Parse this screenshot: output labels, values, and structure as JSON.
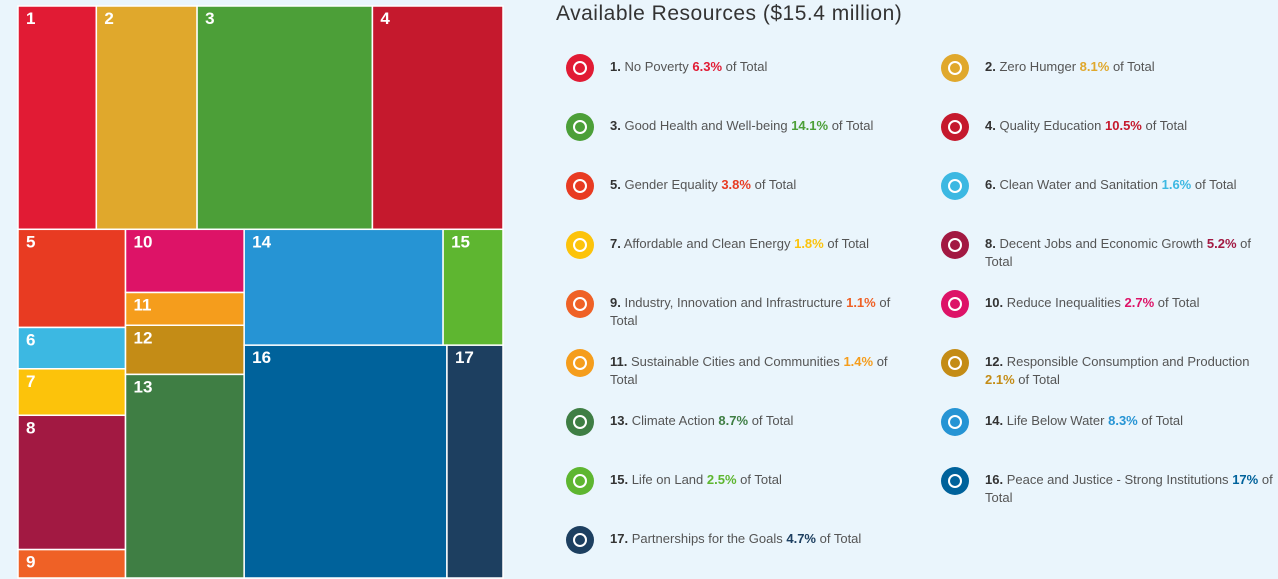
{
  "chart_data": {
    "type": "treemap",
    "title": "Available Resources ($15.4 million)",
    "tile_labels": [
      "1",
      "2",
      "3",
      "4",
      "5",
      "6",
      "7",
      "8",
      "9",
      "10",
      "11",
      "12",
      "13",
      "14",
      "15",
      "16",
      "17"
    ],
    "legend_numbers": [
      "1.",
      "2.",
      "3.",
      "4.",
      "5.",
      "6.",
      "7.",
      "8.",
      "9.",
      "10.",
      "11.",
      "12.",
      "13.",
      "14.",
      "15.",
      "16.",
      "17."
    ],
    "categories": [
      "No Poverty",
      "Zero Humger",
      "Good Health and Well-being",
      "Quality Education",
      "Gender Equality",
      "Clean Water and Sanitation",
      "Affordable and Clean Energy",
      "Decent Jobs and Economic Growth",
      "Industry, Innovation and Infrastructure",
      "Reduce Inequalities",
      "Sustainable Cities and Communities",
      "Responsible Consumption and Production",
      "Climate Action",
      "Life Below Water",
      "Life on Land",
      "Peace and Justice - Strong Institutions",
      "Partnerships for the Goals"
    ],
    "values": [
      6.3,
      8.1,
      14.1,
      10.5,
      3.8,
      1.6,
      1.8,
      5.2,
      1.1,
      2.7,
      1.4,
      2.1,
      8.7,
      8.3,
      2.5,
      17,
      4.7
    ],
    "value_labels": [
      "6.3%",
      "8.1%",
      "14.1%",
      "10.5%",
      "3.8%",
      "1.6%",
      "1.8%",
      "5.2%",
      "1.1%",
      "2.7%",
      "1.4%",
      "2.1%",
      "8.7%",
      "8.3%",
      "2.5%",
      "17%",
      "4.7%"
    ],
    "value_suffix": "of Total",
    "colors": [
      "#e11b34",
      "#e0a82c",
      "#4c9f38",
      "#c5192d",
      "#e83b22",
      "#3cb8e2",
      "#fcc30b",
      "#a21942",
      "#ef6126",
      "#dd1367",
      "#f59d1c",
      "#c48c16",
      "#3f7e44",
      "#2694d4",
      "#5eb630",
      "#00629b",
      "#1d3f60"
    ]
  }
}
